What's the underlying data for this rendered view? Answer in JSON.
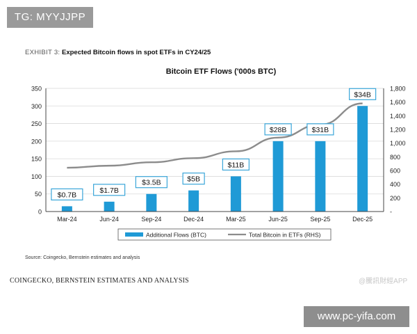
{
  "overlay": {
    "tg": "TG: MYYJJPP",
    "site": "www.pc-yifa.com",
    "app": "@騰訊財經APP"
  },
  "exhibit": {
    "prefix": "EXHIBIT 3:",
    "title": "Expected Bitcoin flows in spot ETFs in CY24/25"
  },
  "source": "Source: Coingecko, Bernstein estimates and analysis",
  "caption": "COINGECKO, BERNSTEIN ESTIMATES AND ANALYSIS",
  "colors": {
    "bar": "#1f9ad6",
    "line": "#8c8c8c",
    "callout_border": "#3aa6d9",
    "grid": "#d9d9d9"
  },
  "chart_data": {
    "type": "bar",
    "title": "Bitcoin ETF Flows ('000s BTC)",
    "categories": [
      "Mar-24",
      "Jun-24",
      "Sep-24",
      "Dec-24",
      "Mar-25",
      "Jun-25",
      "Sep-25",
      "Dec-25"
    ],
    "ylim": [
      0,
      350
    ],
    "y_ticks": [
      0,
      50,
      100,
      150,
      200,
      250,
      300,
      350
    ],
    "y2lim": [
      0,
      1800
    ],
    "y2_ticks": [
      "-",
      "200",
      "400",
      "600",
      "800",
      "1,000",
      "1,200",
      "1,400",
      "1,600",
      "1,800"
    ],
    "series": [
      {
        "name": "Additional Flows (BTC)",
        "kind": "bar",
        "axis": "left",
        "values": [
          15,
          28,
          50,
          60,
          100,
          200,
          200,
          300
        ],
        "labels": [
          "$0.7B",
          "$1.7B",
          "$3.5B",
          "$5B",
          "$11B",
          "$28B",
          "$31B",
          "$34B"
        ]
      },
      {
        "name": "Total Bitcoin in ETFs (RHS)",
        "kind": "line",
        "axis": "right",
        "values": [
          640,
          670,
          720,
          780,
          880,
          1080,
          1270,
          1580
        ]
      }
    ],
    "legend_position": "bottom"
  }
}
